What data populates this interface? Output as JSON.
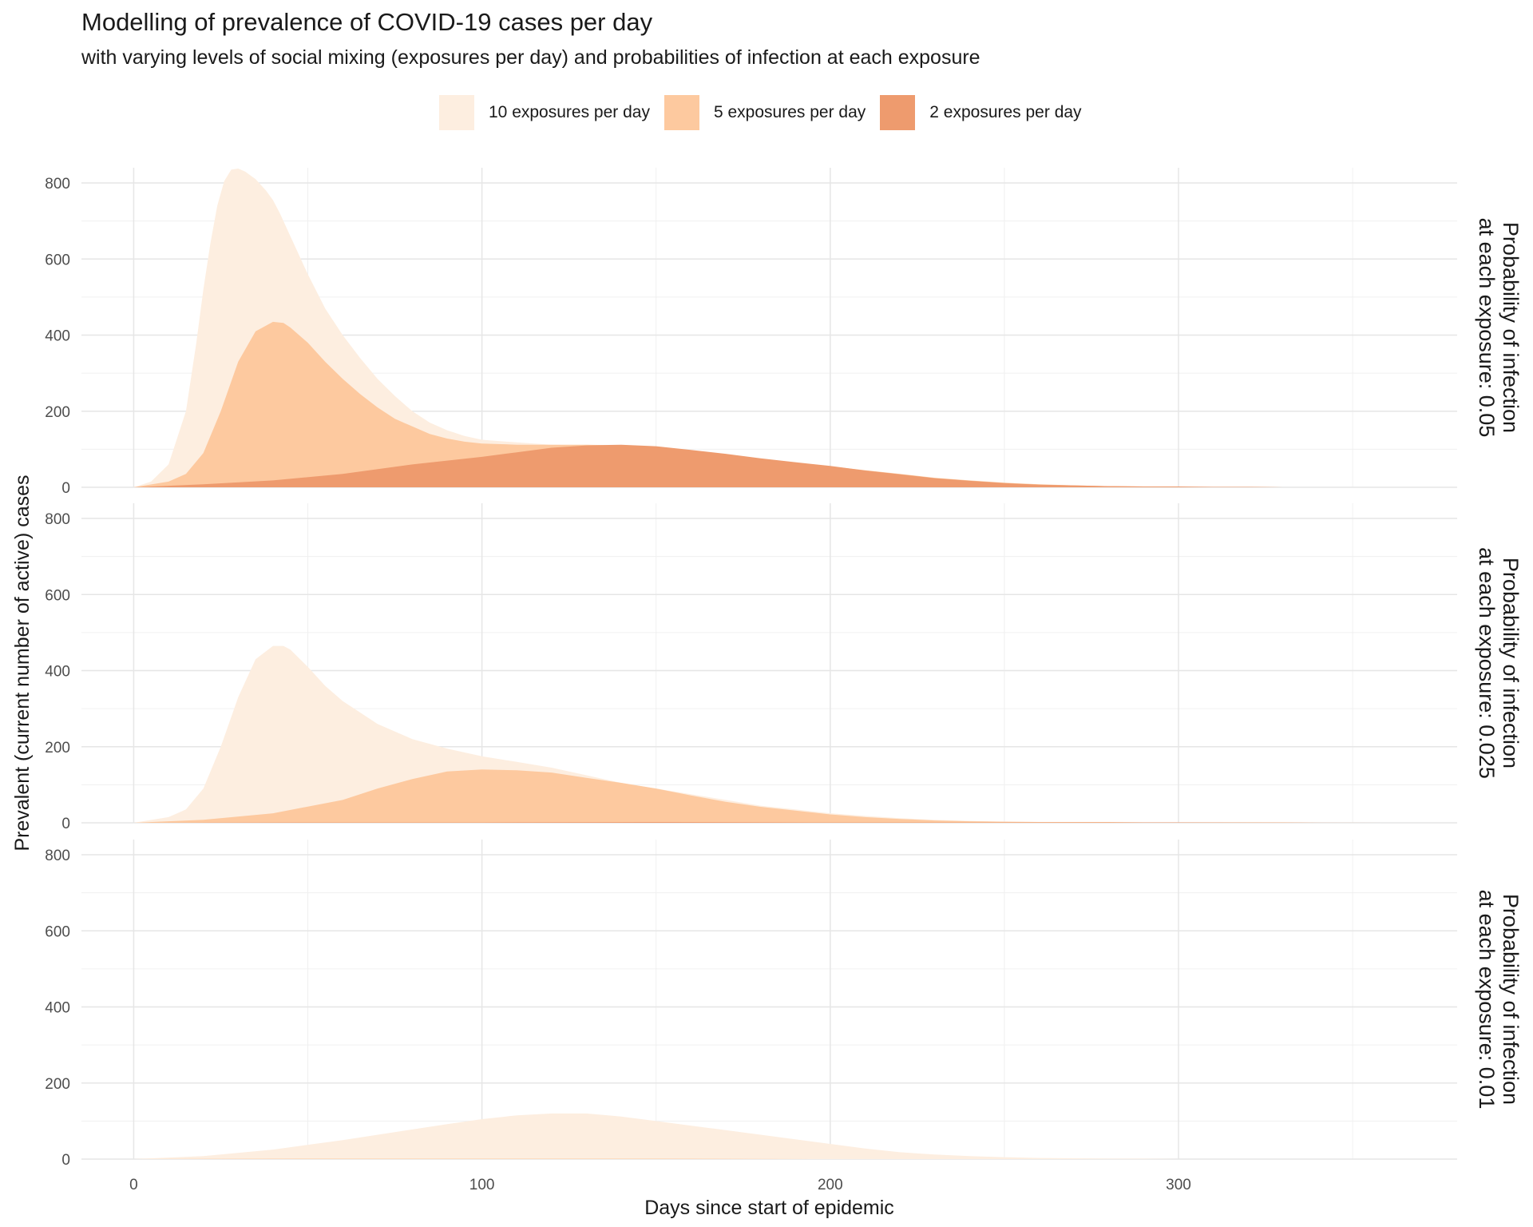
{
  "chart_data": {
    "type": "area",
    "title": "Modelling of prevalence of COVID-19 cases per day",
    "subtitle": "with varying levels of social mixing (exposures per day) and probabilities of infection at each exposure",
    "xlabel": "Days since start of epidemic",
    "ylabel": "Prevalent (current number of active) cases",
    "xlim": [
      -15,
      380
    ],
    "ylim": [
      0,
      840
    ],
    "x_ticks": [
      0,
      100,
      200,
      300
    ],
    "y_ticks": [
      0,
      200,
      400,
      600,
      800
    ],
    "grid": true,
    "legend_position": "top",
    "series_meta": [
      {
        "name": "10 exposures per day",
        "color": "#fdeee0"
      },
      {
        "name": "5 exposures per day",
        "color": "#fdc99f"
      },
      {
        "name": "2 exposures per day",
        "color": "#ee9b6e"
      }
    ],
    "panels": [
      {
        "label": [
          "Probability of infection",
          "at each exposure: 0.05"
        ],
        "series": [
          {
            "name": "10 exposures per day",
            "x": [
              0,
              5,
              10,
              15,
              18,
              20,
              22,
              24,
              26,
              28,
              30,
              32,
              35,
              38,
              40,
              42,
              45,
              50,
              55,
              60,
              65,
              70,
              75,
              80,
              85,
              90,
              95,
              100,
              110,
              120,
              130,
              140,
              150,
              160,
              170,
              180,
              190,
              200,
              210,
              220,
              230,
              240,
              250,
              260,
              270,
              280,
              290,
              300,
              310
            ],
            "y": [
              0,
              15,
              60,
              200,
              380,
              520,
              640,
              740,
              805,
              835,
              838,
              830,
              810,
              780,
              755,
              720,
              660,
              560,
              470,
              400,
              340,
              285,
              240,
              200,
              170,
              150,
              135,
              125,
              118,
              112,
              110,
              105,
              100,
              90,
              80,
              70,
              62,
              52,
              42,
              30,
              22,
              15,
              10,
              6,
              4,
              3,
              2,
              1,
              0
            ]
          },
          {
            "name": "5 exposures per day",
            "x": [
              0,
              10,
              15,
              20,
              25,
              30,
              35,
              40,
              43,
              45,
              50,
              55,
              60,
              65,
              70,
              75,
              80,
              85,
              90,
              95,
              100,
              110,
              120,
              130,
              140,
              150,
              160,
              170,
              180,
              190,
              200,
              210,
              220,
              230,
              240,
              250,
              260,
              270,
              280,
              290,
              300,
              310,
              320,
              330,
              340
            ],
            "y": [
              0,
              15,
              35,
              90,
              200,
              330,
              410,
              435,
              432,
              420,
              380,
              330,
              285,
              245,
              210,
              180,
              160,
              140,
              128,
              120,
              115,
              112,
              112,
              112,
              110,
              105,
              95,
              85,
              75,
              65,
              55,
              45,
              35,
              25,
              18,
              12,
              8,
              5,
              3,
              2,
              1,
              1,
              1,
              0,
              0
            ]
          },
          {
            "name": "2 exposures per day",
            "x": [
              0,
              20,
              40,
              60,
              80,
              100,
              110,
              120,
              130,
              140,
              150,
              160,
              170,
              180,
              190,
              200,
              210,
              220,
              230,
              240,
              250,
              260,
              270,
              280,
              290,
              300,
              310,
              320,
              330,
              340
            ],
            "y": [
              0,
              8,
              18,
              35,
              60,
              80,
              92,
              104,
              110,
              112,
              108,
              98,
              88,
              76,
              66,
              56,
              44,
              34,
              24,
              17,
              11,
              7,
              5,
              3,
              2,
              2,
              1,
              1,
              0,
              0
            ]
          }
        ]
      },
      {
        "label": [
          "Probability of infection",
          "at each exposure: 0.025"
        ],
        "series": [
          {
            "name": "10 exposures per day",
            "x": [
              0,
              10,
              15,
              20,
              25,
              30,
              35,
              40,
              43,
              45,
              50,
              55,
              60,
              70,
              80,
              90,
              100,
              110,
              120,
              130,
              140,
              150,
              160,
              170,
              180,
              190,
              200,
              210,
              220,
              230,
              240,
              250,
              260,
              270,
              280,
              290,
              300
            ],
            "y": [
              0,
              15,
              35,
              90,
              200,
              330,
              430,
              465,
              465,
              455,
              410,
              360,
              320,
              260,
              220,
              195,
              175,
              160,
              145,
              125,
              105,
              90,
              75,
              60,
              45,
              35,
              25,
              18,
              12,
              8,
              5,
              3,
              2,
              1,
              1,
              0,
              0
            ]
          },
          {
            "name": "5 exposures per day",
            "x": [
              0,
              20,
              40,
              60,
              70,
              80,
              90,
              100,
              110,
              120,
              130,
              140,
              150,
              160,
              170,
              180,
              190,
              200,
              210,
              220,
              230,
              240,
              250,
              260,
              270,
              280,
              290,
              300,
              310,
              320,
              330,
              340,
              350,
              360,
              365
            ],
            "y": [
              0,
              8,
              25,
              60,
              90,
              115,
              135,
              140,
              138,
              132,
              118,
              105,
              90,
              72,
              55,
              42,
              32,
              22,
              15,
              10,
              6,
              4,
              3,
              2,
              2,
              2,
              1,
              1,
              1,
              1,
              1,
              0,
              0,
              0,
              0
            ]
          },
          {
            "name": "2 exposures per day",
            "x": [
              0,
              50,
              100,
              150,
              200,
              250,
              300,
              360
            ],
            "y": [
              0,
              1,
              1,
              2,
              1,
              1,
              1,
              0
            ]
          }
        ]
      },
      {
        "label": [
          "Probability of infection",
          "at each exposure: 0.01"
        ],
        "series": [
          {
            "name": "10 exposures per day",
            "x": [
              0,
              20,
              40,
              60,
              80,
              90,
              100,
              110,
              120,
              130,
              140,
              150,
              160,
              170,
              180,
              190,
              200,
              210,
              220,
              230,
              240,
              250,
              260,
              270,
              280,
              290,
              300
            ],
            "y": [
              0,
              8,
              25,
              50,
              78,
              92,
              105,
              115,
              120,
              120,
              112,
              100,
              88,
              76,
              64,
              52,
              40,
              28,
              18,
              12,
              8,
              5,
              3,
              2,
              1,
              1,
              0
            ]
          },
          {
            "name": "5 exposures per day",
            "x": [
              0,
              50,
              100,
              150,
              200
            ],
            "y": [
              0,
              1,
              1,
              1,
              0
            ]
          },
          {
            "name": "2 exposures per day",
            "x": [
              0,
              50,
              100
            ],
            "y": [
              0,
              0,
              0
            ]
          }
        ]
      }
    ]
  }
}
